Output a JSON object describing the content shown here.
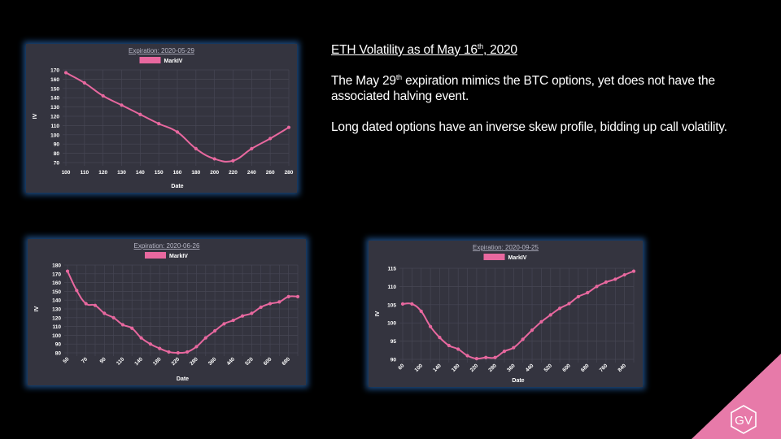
{
  "slide": {
    "heading": {
      "pre": "ETH Volatility as of May 16",
      "sup": "th",
      "post": ", 2020"
    },
    "para1": {
      "pre": "The May 29",
      "sup": "th",
      "post": " expiration mimics the BTC options, yet does not have the associated halving event."
    },
    "para2": "Long dated options have an inverse skew profile, bidding up call volatility.",
    "logo_text": "GV"
  },
  "colors": {
    "series": "#e8689f",
    "panel": "#34343f",
    "glow": "#2a64aa",
    "logo": "#e77aa9"
  },
  "chart_data": [
    {
      "type": "line",
      "title": "Expiration: 2020-05-29",
      "xlabel": "Date",
      "ylabel": "IV",
      "legend": "top-center",
      "grid": true,
      "ylim": [
        70,
        170
      ],
      "yticks": [
        70,
        80,
        90,
        100,
        110,
        120,
        130,
        140,
        150,
        160,
        170
      ],
      "categories": [
        "100",
        "110",
        "120",
        "130",
        "140",
        "150",
        "160",
        "180",
        "200",
        "220",
        "240",
        "260",
        "280"
      ],
      "series": [
        {
          "name": "MarkIV",
          "values": [
            167,
            156,
            142,
            132,
            122,
            112,
            103,
            85,
            74,
            72,
            85,
            96,
            108
          ]
        }
      ]
    },
    {
      "type": "line",
      "title": "Expiration: 2020-06-26",
      "xlabel": "Date",
      "ylabel": "IV",
      "legend": "top-center",
      "grid": true,
      "ylim": [
        80,
        180
      ],
      "yticks": [
        80,
        90,
        100,
        110,
        120,
        130,
        140,
        150,
        160,
        170,
        180
      ],
      "categories": [
        "50",
        "60",
        "70",
        "80",
        "90",
        "100",
        "110",
        "120",
        "140",
        "160",
        "180",
        "200",
        "220",
        "240",
        "280",
        "320",
        "360",
        "400",
        "440",
        "480",
        "520",
        "560",
        "600",
        "640",
        "680",
        "720"
      ],
      "tick_labels": [
        "50",
        "",
        "70",
        "",
        "90",
        "",
        "110",
        "",
        "140",
        "",
        "180",
        "",
        "220",
        "",
        "280",
        "",
        "360",
        "",
        "440",
        "",
        "520",
        "",
        "600",
        "",
        "680",
        ""
      ],
      "series": [
        {
          "name": "MarkIV",
          "values": [
            173,
            151,
            136,
            134,
            125,
            120,
            112,
            108,
            97,
            90,
            85,
            81,
            80,
            81,
            87,
            97,
            105,
            113,
            117,
            122,
            125,
            132,
            136,
            138,
            144,
            144
          ]
        }
      ]
    },
    {
      "type": "line",
      "title": "Expiration: 2020-09-25",
      "xlabel": "Date",
      "ylabel": "IV",
      "legend": "top-center",
      "grid": true,
      "ylim": [
        90,
        115
      ],
      "yticks": [
        90,
        95,
        100,
        105,
        110,
        115
      ],
      "categories": [
        "60",
        "80",
        "100",
        "120",
        "140",
        "160",
        "180",
        "200",
        "220",
        "240",
        "280",
        "320",
        "360",
        "400",
        "440",
        "480",
        "520",
        "560",
        "600",
        "640",
        "680",
        "720",
        "760",
        "800",
        "840",
        "880"
      ],
      "tick_labels": [
        "60",
        "",
        "100",
        "",
        "140",
        "",
        "180",
        "",
        "220",
        "",
        "280",
        "",
        "360",
        "",
        "440",
        "",
        "520",
        "",
        "600",
        "",
        "680",
        "",
        "760",
        "",
        "840",
        ""
      ],
      "series": [
        {
          "name": "MarkIV",
          "values": [
            105.2,
            105.2,
            103.2,
            99,
            96,
            93.8,
            92.8,
            91,
            90.2,
            90.5,
            90.5,
            92.2,
            93.2,
            95.5,
            98,
            100.3,
            102.2,
            104,
            105.3,
            107.2,
            108.3,
            110,
            111.2,
            112,
            113.2,
            114.2
          ]
        }
      ]
    }
  ]
}
